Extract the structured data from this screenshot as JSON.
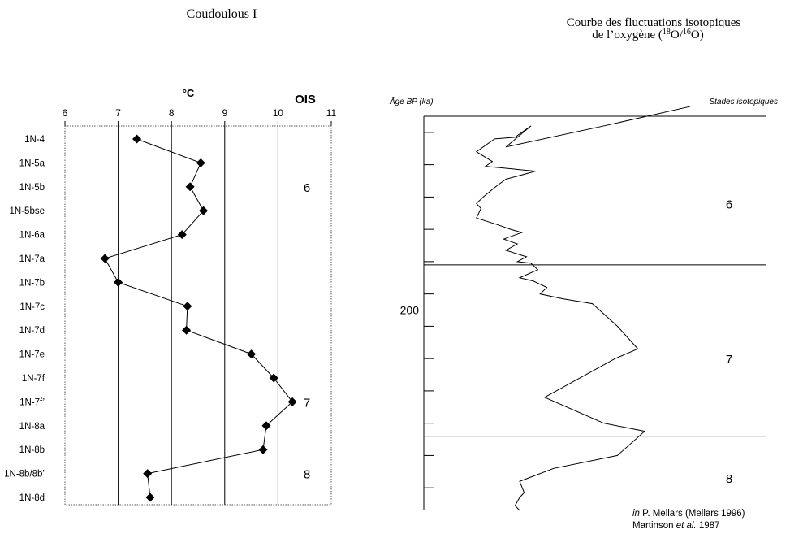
{
  "left_title": "Coudoulous I",
  "right_title_line1": "Courbe des fluctuations isotopiques",
  "right_title_line2_prefix": "de l’oxygène (",
  "right_title_iso1_sup": "18",
  "right_title_iso1": "O/",
  "right_title_iso2_sup": "16",
  "right_title_iso2": "O)",
  "credit": {
    "line1_italic": "in",
    "line1_rest": " P. Mellars (Mellars 1996)",
    "line2_pre": "Martinson ",
    "line2_italic": "et al.",
    "line2_post": " 1987"
  },
  "colors": {
    "line": "#000000",
    "dotted_frame": "#555555"
  },
  "chart_data": [
    {
      "type": "line",
      "title": "Coudoulous I",
      "x_label": "°C",
      "x_axis_position": "top",
      "xlim": [
        6,
        11
      ],
      "x_ticks": [
        "6",
        "7",
        "8",
        "9",
        "10",
        "11"
      ],
      "vertical_gridlines": [
        7,
        8,
        9,
        10
      ],
      "marker": "diamond",
      "stage_header": "OIS",
      "categories": [
        "1N-4",
        "1N-5a",
        "1N-5b",
        "1N-5bse",
        "1N-6a",
        "1N-7a",
        "1N-7b",
        "1N-7c",
        "1N-7d",
        "1N-7e",
        "1N-7f",
        "1N-7f’",
        "1N-8a",
        "1N-8b",
        "1N-8b/8b’",
        "1N-8d"
      ],
      "values": [
        7.35,
        8.55,
        8.35,
        8.6,
        8.2,
        6.75,
        7.0,
        8.3,
        8.28,
        9.5,
        9.92,
        10.27,
        9.78,
        9.72,
        7.55,
        7.6
      ],
      "stages": [
        {
          "label": "6",
          "at_index": 2
        },
        {
          "label": "7",
          "at_index": 11
        },
        {
          "label": "8",
          "at_index": 14
        }
      ]
    },
    {
      "type": "line",
      "title": "Courbe des fluctuations isotopiques de l’oxygène (18O/16O)",
      "y_label": "Âge BP (ka)",
      "y_tick_label": "200",
      "y_tick_label_value": 200,
      "ylim": [
        140,
        262
      ],
      "y_minor_ticks": [
        145,
        155,
        165,
        175,
        185,
        195,
        205,
        215,
        225,
        235,
        245,
        255
      ],
      "stage_axis_label": "Stades isotopiques",
      "stage_boundaries": [
        186,
        239
      ],
      "stages": [
        {
          "label": "6",
          "age": 167
        },
        {
          "label": "7",
          "age": 215
        },
        {
          "label": "8",
          "age": 252
        }
      ],
      "x_scale": "relative δ18O (unlabeled)",
      "xlim": [
        0,
        100
      ],
      "series": [
        {
          "points": [
            [
              100,
              137.0
            ],
            [
              62,
              143.0
            ],
            [
              19,
              149.5
            ],
            [
              30,
              143.0
            ],
            [
              23,
              146.5
            ],
            [
              14,
              147.0
            ],
            [
              6,
              151.0
            ],
            [
              13,
              154.0
            ],
            [
              10,
              155.5
            ],
            [
              32,
              157.0
            ],
            [
              19,
              159.5
            ],
            [
              15,
              161.5
            ],
            [
              9,
              165.0
            ],
            [
              6,
              167.0
            ],
            [
              8,
              168.5
            ],
            [
              6,
              171.5
            ],
            [
              15,
              173.5
            ],
            [
              21,
              175.0
            ],
            [
              26,
              176.0
            ],
            [
              18,
              178.0
            ],
            [
              24,
              179.5
            ],
            [
              19,
              181.5
            ],
            [
              28,
              183.5
            ],
            [
              24,
              185.0
            ],
            [
              30,
              185.5
            ],
            [
              33,
              187.5
            ],
            [
              25,
              190.0
            ],
            [
              31,
              191.0
            ],
            [
              37,
              193.0
            ],
            [
              34,
              195.0
            ],
            [
              44,
              196.5
            ],
            [
              57,
              198.0
            ],
            [
              68,
              205.0
            ],
            [
              77,
              212.0
            ],
            [
              67,
              215.0
            ],
            [
              36,
              227.0
            ],
            [
              62,
              235.0
            ],
            [
              80,
              237.5
            ],
            [
              68,
              245.0
            ],
            [
              40,
              249.0
            ],
            [
              25,
              253.0
            ],
            [
              27,
              256.5
            ],
            [
              25,
              258.0
            ],
            [
              23,
              260.5
            ],
            [
              25,
              262.0
            ]
          ]
        }
      ]
    }
  ]
}
